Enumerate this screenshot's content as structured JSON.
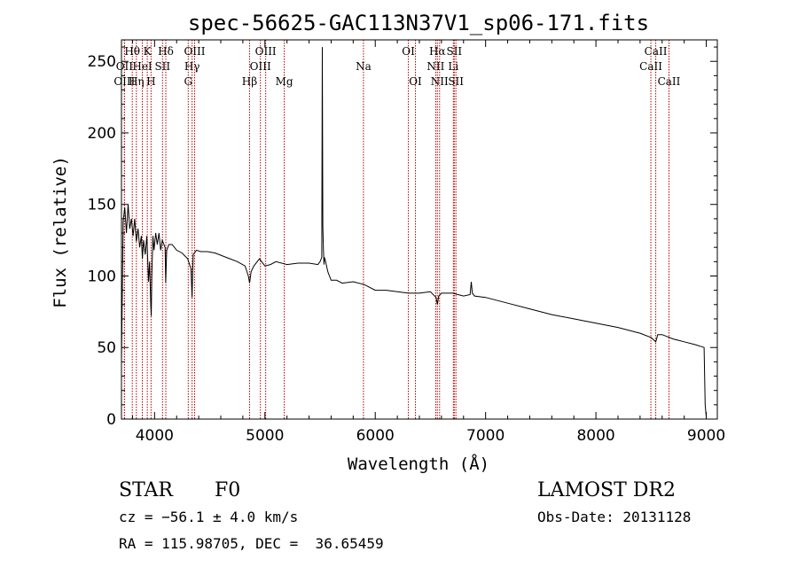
{
  "chart_data": {
    "type": "line",
    "title": "spec-56625-GAC113N37V1_sp06-171.fits",
    "xlabel": "Wavelength (Å)",
    "ylabel": "Flux (relative)",
    "xlim": [
      3700,
      9100
    ],
    "ylim": [
      0,
      265
    ],
    "xticks": [
      4000,
      5000,
      6000,
      7000,
      8000,
      9000
    ],
    "yticks": [
      0,
      50,
      100,
      150,
      200,
      250
    ],
    "tick_labels": {
      "x": [
        "4000",
        "5000",
        "6000",
        "7000",
        "8000",
        "9000"
      ],
      "y": [
        "0",
        "50",
        "100",
        "150",
        "200",
        "250"
      ]
    },
    "series": [
      {
        "name": "spectrum",
        "x": [
          3700,
          3715,
          3730,
          3745,
          3760,
          3775,
          3790,
          3805,
          3820,
          3835,
          3850,
          3865,
          3880,
          3890,
          3900,
          3915,
          3930,
          3945,
          3955,
          3965,
          3970,
          3975,
          3985,
          3995,
          4010,
          4025,
          4040,
          4055,
          4070,
          4085,
          4095,
          4101,
          4110,
          4130,
          4160,
          4200,
          4250,
          4300,
          4330,
          4340,
          4350,
          4380,
          4420,
          4480,
          4550,
          4650,
          4750,
          4820,
          4850,
          4861,
          4875,
          4900,
          4950,
          5000,
          5050,
          5100,
          5200,
          5300,
          5400,
          5480,
          5500,
          5515,
          5520,
          5525,
          5530,
          5535,
          5540,
          5550,
          5570,
          5600,
          5650,
          5700,
          5800,
          5900,
          6000,
          6100,
          6200,
          6300,
          6400,
          6500,
          6550,
          6563,
          6575,
          6600,
          6700,
          6800,
          6860,
          6870,
          6880,
          6900,
          7000,
          7200,
          7400,
          7600,
          7800,
          8000,
          8200,
          8400,
          8500,
          8542,
          8560,
          8600,
          8700,
          8800,
          8900,
          8980,
          8990,
          9000
        ],
        "values": [
          40,
          138,
          148,
          130,
          150,
          133,
          140,
          128,
          140,
          124,
          133,
          120,
          128,
          112,
          125,
          115,
          128,
          96,
          110,
          80,
          72,
          100,
          128,
          118,
          130,
          122,
          130,
          118,
          125,
          122,
          120,
          95,
          118,
          122,
          122,
          118,
          116,
          112,
          105,
          85,
          115,
          118,
          117,
          117,
          116,
          113,
          110,
          107,
          100,
          95,
          103,
          107,
          112,
          107,
          108,
          110,
          108,
          109,
          109,
          108,
          110,
          113,
          260,
          135,
          120,
          108,
          113,
          110,
          103,
          97,
          97,
          95,
          96,
          94,
          90,
          90,
          89,
          88,
          88,
          89,
          85,
          80,
          86,
          88,
          88,
          86,
          87,
          96,
          88,
          86,
          85,
          81,
          77,
          73,
          70,
          67,
          64,
          60,
          57,
          54,
          59,
          59,
          56,
          54,
          52,
          50,
          10,
          1
        ]
      }
    ]
  },
  "lines": [
    {
      "label": "Hθ",
      "wl": 3798,
      "row": 0
    },
    {
      "label": "OII",
      "wl": 3727,
      "row": 1
    },
    {
      "label": "OIII",
      "wl": 3727,
      "row": 2
    },
    {
      "label": "Hη",
      "wl": 3835,
      "row": 2
    },
    {
      "label": "K",
      "wl": 3934,
      "row": 0
    },
    {
      "label": "HeI",
      "wl": 3889,
      "row": 1
    },
    {
      "label": "H",
      "wl": 3968,
      "row": 2
    },
    {
      "label": "Hδ",
      "wl": 4102,
      "row": 0
    },
    {
      "label": "SII",
      "wl": 4072,
      "row": 1
    },
    {
      "label": "OIII",
      "wl": 4363,
      "row": 0
    },
    {
      "label": "Hγ",
      "wl": 4340,
      "row": 1
    },
    {
      "label": "G",
      "wl": 4305,
      "row": 2
    },
    {
      "label": "OIII",
      "wl": 5007,
      "row": 0
    },
    {
      "label": "OIII",
      "wl": 4959,
      "row": 1
    },
    {
      "label": "Hβ",
      "wl": 4861,
      "row": 2
    },
    {
      "label": "Mg",
      "wl": 5175,
      "row": 2
    },
    {
      "label": "Na",
      "wl": 5893,
      "row": 1
    },
    {
      "label": "OI",
      "wl": 6300,
      "row": 0
    },
    {
      "label": "OI",
      "wl": 6364,
      "row": 2
    },
    {
      "label": "Hα",
      "wl": 6563,
      "row": 0
    },
    {
      "label": "NII",
      "wl": 6548,
      "row": 1
    },
    {
      "label": "NII",
      "wl": 6583,
      "row": 2
    },
    {
      "label": "SII",
      "wl": 6716,
      "row": 0
    },
    {
      "label": "Li",
      "wl": 6708,
      "row": 1
    },
    {
      "label": "SII",
      "wl": 6731,
      "row": 2
    },
    {
      "label": "CaII",
      "wl": 8542,
      "row": 0
    },
    {
      "label": "CaII",
      "wl": 8498,
      "row": 1
    },
    {
      "label": "CaII",
      "wl": 8662,
      "row": 2
    }
  ],
  "info": {
    "object_class": "STAR",
    "subclass": "F0",
    "survey": "LAMOST DR2",
    "redshift": "cz = −56.1 ± 4.0 km/s",
    "obs_date": "Obs-Date: 20131128",
    "coords": "RA = 115.98705, DEC =  36.65459"
  },
  "colors": {
    "spectrum": "#000000",
    "line_markers": "#b40000",
    "axis": "#000000",
    "background": "#ffffff"
  }
}
